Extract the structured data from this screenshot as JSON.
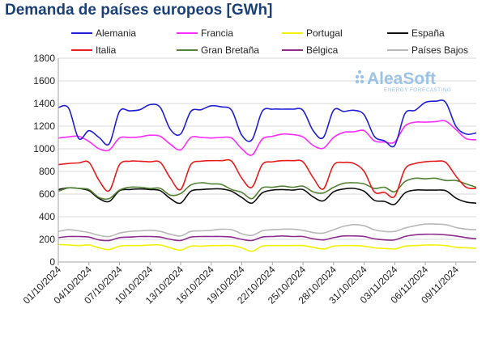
{
  "chart_data": {
    "type": "line",
    "title": "Demanda de países europeos [GWh]",
    "xlabel": "",
    "ylabel": "",
    "ylim": [
      0,
      1800
    ],
    "yticks": [
      0,
      200,
      400,
      600,
      800,
      1000,
      1200,
      1400,
      1600,
      1800
    ],
    "grid": true,
    "legend": "top",
    "xdomain": [
      "2024-10-01",
      "2024-11-11"
    ],
    "xtick_labels": [
      "01/10/2024",
      "04/10/2024",
      "07/10/2024",
      "10/10/2024",
      "13/10/2024",
      "16/10/2024",
      "19/10/2024",
      "22/10/2024",
      "25/10/2024",
      "28/10/2024",
      "31/10/2024",
      "03/11/2024",
      "06/11/2024",
      "09/11/2024"
    ],
    "x": [
      "2024-10-01",
      "2024-10-02",
      "2024-10-03",
      "2024-10-04",
      "2024-10-05",
      "2024-10-06",
      "2024-10-07",
      "2024-10-08",
      "2024-10-09",
      "2024-10-10",
      "2024-10-11",
      "2024-10-12",
      "2024-10-13",
      "2024-10-14",
      "2024-10-15",
      "2024-10-16",
      "2024-10-17",
      "2024-10-18",
      "2024-10-19",
      "2024-10-20",
      "2024-10-21",
      "2024-10-22",
      "2024-10-23",
      "2024-10-24",
      "2024-10-25",
      "2024-10-26",
      "2024-10-27",
      "2024-10-28",
      "2024-10-29",
      "2024-10-30",
      "2024-10-31",
      "2024-11-01",
      "2024-11-02",
      "2024-11-03",
      "2024-11-04",
      "2024-11-05",
      "2024-11-06",
      "2024-11-07",
      "2024-11-08",
      "2024-11-09",
      "2024-11-10",
      "2024-11-11"
    ],
    "series": [
      {
        "name": "Alemania",
        "color": "#1f1fd6",
        "values": [
          1365,
          1360,
          1090,
          1160,
          1100,
          1045,
          1330,
          1335,
          1345,
          1390,
          1365,
          1170,
          1130,
          1330,
          1345,
          1380,
          1370,
          1340,
          1120,
          1080,
          1330,
          1350,
          1350,
          1350,
          1340,
          1160,
          1100,
          1340,
          1330,
          1340,
          1300,
          1110,
          1070,
          1030,
          1310,
          1340,
          1410,
          1420,
          1410,
          1200,
          1130,
          1140
        ]
      },
      {
        "name": "Francia",
        "color": "#ff2bff",
        "values": [
          1095,
          1105,
          1110,
          1065,
          1000,
          990,
          1095,
          1100,
          1105,
          1120,
          1110,
          1040,
          990,
          1100,
          1100,
          1095,
          1100,
          1095,
          1000,
          945,
          1085,
          1110,
          1130,
          1125,
          1105,
          1030,
          1005,
          1100,
          1145,
          1150,
          1160,
          1070,
          1060,
          1060,
          1200,
          1235,
          1235,
          1240,
          1245,
          1170,
          1090,
          1080
        ]
      },
      {
        "name": "Portugal",
        "color": "#f2f200",
        "values": [
          155,
          150,
          145,
          150,
          125,
          110,
          140,
          145,
          145,
          150,
          150,
          125,
          105,
          140,
          140,
          145,
          145,
          145,
          125,
          95,
          140,
          145,
          145,
          145,
          145,
          130,
          115,
          140,
          145,
          145,
          140,
          125,
          120,
          115,
          140,
          145,
          150,
          150,
          145,
          130,
          125,
          120
        ]
      },
      {
        "name": "España",
        "color": "#111111",
        "values": [
          640,
          655,
          650,
          630,
          560,
          535,
          630,
          640,
          645,
          640,
          630,
          560,
          520,
          625,
          640,
          645,
          645,
          625,
          570,
          520,
          610,
          635,
          640,
          635,
          640,
          575,
          540,
          620,
          645,
          650,
          625,
          545,
          535,
          510,
          610,
          635,
          635,
          635,
          630,
          565,
          530,
          520
        ]
      },
      {
        "name": "Italia",
        "color": "#e81c1c",
        "values": [
          860,
          870,
          875,
          880,
          720,
          630,
          860,
          890,
          890,
          885,
          880,
          740,
          640,
          860,
          890,
          895,
          895,
          890,
          740,
          660,
          860,
          885,
          895,
          895,
          885,
          745,
          645,
          855,
          880,
          870,
          800,
          620,
          615,
          580,
          820,
          870,
          885,
          890,
          880,
          760,
          660,
          650
        ]
      },
      {
        "name": "Gran Bretaña",
        "color": "#548235",
        "values": [
          625,
          655,
          650,
          640,
          570,
          560,
          635,
          660,
          660,
          650,
          650,
          590,
          605,
          680,
          700,
          690,
          685,
          640,
          615,
          560,
          655,
          660,
          670,
          660,
          670,
          620,
          610,
          660,
          695,
          700,
          690,
          650,
          660,
          620,
          710,
          740,
          735,
          740,
          720,
          720,
          690,
          660
        ]
      },
      {
        "name": "Bélgica",
        "color": "#8f2d8f",
        "values": [
          215,
          225,
          225,
          220,
          195,
          190,
          215,
          220,
          225,
          225,
          220,
          200,
          190,
          220,
          225,
          225,
          225,
          220,
          200,
          190,
          220,
          225,
          230,
          225,
          225,
          205,
          195,
          215,
          230,
          230,
          225,
          205,
          195,
          195,
          225,
          240,
          245,
          245,
          240,
          230,
          215,
          205
        ]
      },
      {
        "name": "Países Bajos",
        "color": "#b8b8b8",
        "values": [
          270,
          285,
          275,
          260,
          235,
          225,
          255,
          270,
          275,
          280,
          270,
          245,
          230,
          270,
          275,
          280,
          290,
          285,
          250,
          235,
          275,
          285,
          290,
          290,
          280,
          260,
          255,
          285,
          315,
          330,
          320,
          285,
          270,
          270,
          300,
          320,
          335,
          335,
          330,
          305,
          290,
          285
        ]
      }
    ]
  },
  "logo": {
    "name": "AleaSoft",
    "tagline": "ENERGY FORECASTING"
  }
}
